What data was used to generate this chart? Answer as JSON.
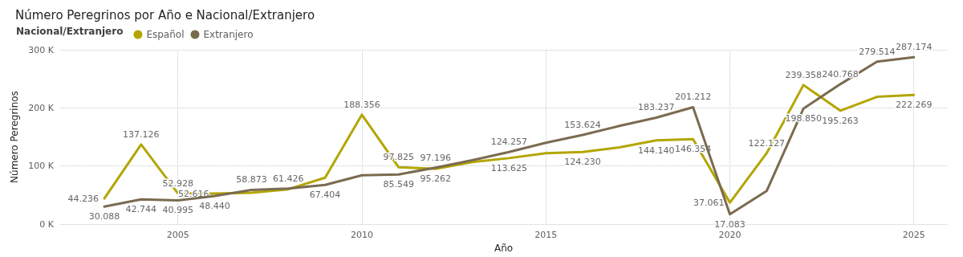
{
  "chart_data": {
    "type": "line",
    "title": "Número Peregrinos por Año e Nacional/Extranjero",
    "xlabel": "Año",
    "ylabel": "Número Peregrinos",
    "legend_title": "Nacional/Extranjero",
    "legend": "top left",
    "grid": true,
    "marker": "none",
    "x": [
      2003,
      2004,
      2005,
      2006,
      2007,
      2008,
      2009,
      2010,
      2011,
      2012,
      2013,
      2014,
      2015,
      2016,
      2017,
      2018,
      2019,
      2020,
      2021,
      2022,
      2023,
      2024,
      2025
    ],
    "xlim": [
      2001.8,
      2025.9
    ],
    "xticks": [
      2005,
      2010,
      2015,
      2020,
      2025
    ],
    "ylim": [
      0,
      300000
    ],
    "yticks": [
      {
        "value": 0,
        "label": "0 K"
      },
      {
        "value": 100000,
        "label": "100 K"
      },
      {
        "value": 200000,
        "label": "200 K"
      },
      {
        "value": 300000,
        "label": "300 K"
      }
    ],
    "series": [
      {
        "name": "Español",
        "color": "#b3a600",
        "values": [
          44236,
          137126,
          52928,
          52616,
          54000,
          60000,
          80000,
          188356,
          97825,
          95262,
          107000,
          113625,
          122000,
          124230,
          132000,
          144140,
          146354,
          37061,
          122127,
          239358,
          195263,
          219000,
          222269
        ],
        "value_labels": [
          "44.236",
          "137.126",
          "52.928",
          "52.616",
          null,
          null,
          null,
          "188.356",
          "97.825",
          "95.262",
          null,
          "113.625",
          null,
          "124.230",
          null,
          "144.140",
          "146.354",
          "37.061",
          "122.127",
          "239.358",
          "195.263",
          null,
          "222.269"
        ]
      },
      {
        "name": "Extranjero",
        "color": "#7a6b50",
        "values": [
          30088,
          42744,
          40995,
          48440,
          58873,
          61426,
          67404,
          84000,
          85549,
          97196,
          110000,
          124257,
          140000,
          153624,
          169000,
          183237,
          201212,
          17083,
          57000,
          198850,
          240768,
          279514,
          287174
        ],
        "value_labels": [
          "30.088",
          "42.744",
          "40.995",
          "48.440",
          "58.873",
          "61.426",
          "67.404",
          null,
          "85.549",
          "97.196",
          null,
          "124.257",
          null,
          "153.624",
          null,
          "183.237",
          "201.212",
          "17.083",
          null,
          "198.850",
          "240.768",
          "279.514",
          "287.174"
        ]
      }
    ]
  }
}
